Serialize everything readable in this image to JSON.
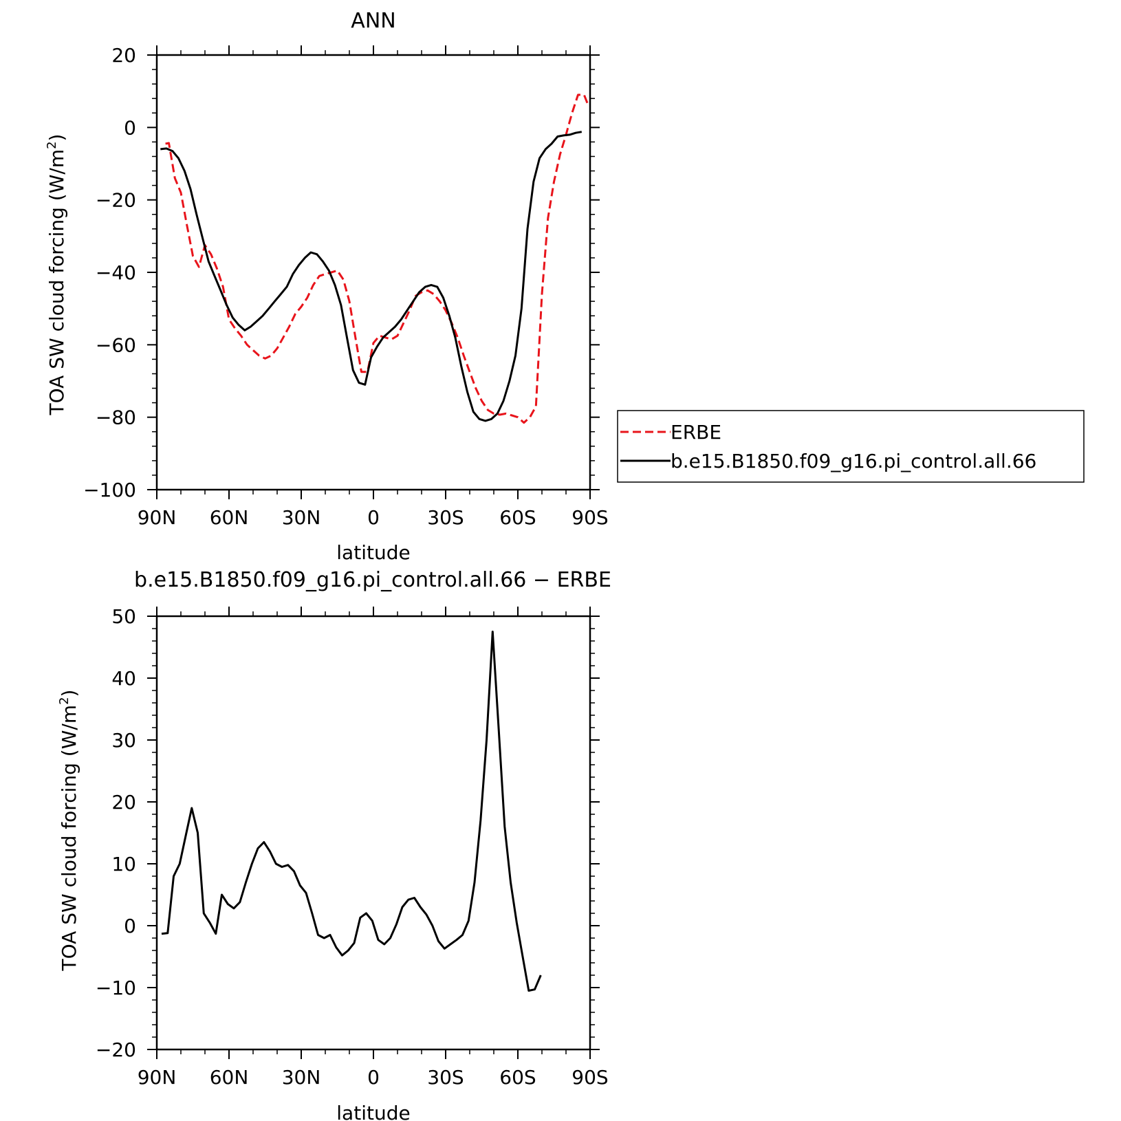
{
  "chart_data": [
    {
      "type": "line",
      "title": "ANN",
      "xlabel": "latitude",
      "ylabel_main": "TOA SW cloud forcing (W/m",
      "ylabel_sup": "2",
      "ylabel_close": ")",
      "xlim": [
        -90,
        90
      ],
      "ylim": [
        -100,
        20
      ],
      "x_ticks": [
        {
          "value": -90,
          "label": "90N"
        },
        {
          "value": -60,
          "label": "60N"
        },
        {
          "value": -30,
          "label": "30N"
        },
        {
          "value": 0,
          "label": "0"
        },
        {
          "value": 30,
          "label": "30S"
        },
        {
          "value": 60,
          "label": "60S"
        },
        {
          "value": 90,
          "label": "90S"
        }
      ],
      "y_ticks": [
        {
          "value": 20,
          "label": "20"
        },
        {
          "value": 0,
          "label": "0"
        },
        {
          "value": -20,
          "label": "−20"
        },
        {
          "value": -40,
          "label": "−40"
        },
        {
          "value": -60,
          "label": "−60"
        },
        {
          "value": -80,
          "label": "−80"
        },
        {
          "value": -100,
          "label": "−100"
        }
      ],
      "legend_position": "right",
      "series": [
        {
          "name": "ERBE",
          "color": "#e8141b",
          "style": "dashed",
          "points": [
            [
              -86.4,
              -4.5
            ],
            [
              -85.0,
              -4.3
            ],
            [
              -82.5,
              -14.0
            ],
            [
              -80.0,
              -18.0
            ],
            [
              -77.5,
              -27.0
            ],
            [
              -75.0,
              -35.5
            ],
            [
              -72.5,
              -38.5
            ],
            [
              -70.0,
              -32.5
            ],
            [
              -67.5,
              -35.0
            ],
            [
              -65.0,
              -39.0
            ],
            [
              -62.5,
              -44.0
            ],
            [
              -60.0,
              -53.0
            ],
            [
              -57.5,
              -55.5
            ],
            [
              -55.0,
              -57.5
            ],
            [
              -52.5,
              -60.0
            ],
            [
              -50.0,
              -61.5
            ],
            [
              -47.5,
              -63.0
            ],
            [
              -45.0,
              -63.8
            ],
            [
              -42.5,
              -63.0
            ],
            [
              -40.0,
              -61.0
            ],
            [
              -37.5,
              -58.0
            ],
            [
              -35.0,
              -55.0
            ],
            [
              -32.5,
              -51.5
            ],
            [
              -30.0,
              -49.5
            ],
            [
              -27.5,
              -47.0
            ],
            [
              -25.0,
              -43.5
            ],
            [
              -22.5,
              -41.0
            ],
            [
              -20.0,
              -40.5
            ],
            [
              -17.5,
              -40.0
            ],
            [
              -15.0,
              -39.5
            ],
            [
              -12.5,
              -42.0
            ],
            [
              -10.0,
              -48.0
            ],
            [
              -7.5,
              -58.0
            ],
            [
              -5.0,
              -67.5
            ],
            [
              -2.5,
              -67.5
            ],
            [
              0.0,
              -59.5
            ],
            [
              2.5,
              -57.5
            ],
            [
              5.0,
              -58.0
            ],
            [
              7.5,
              -58.5
            ],
            [
              10.0,
              -57.5
            ],
            [
              12.5,
              -54.0
            ],
            [
              15.0,
              -50.5
            ],
            [
              17.5,
              -46.5
            ],
            [
              20.0,
              -45.5
            ],
            [
              22.5,
              -45.0
            ],
            [
              25.0,
              -46.0
            ],
            [
              27.5,
              -48.0
            ],
            [
              30.0,
              -50.5
            ],
            [
              32.5,
              -54.0
            ],
            [
              35.0,
              -58.0
            ],
            [
              37.5,
              -63.0
            ],
            [
              40.0,
              -67.5
            ],
            [
              42.5,
              -72.0
            ],
            [
              45.0,
              -75.5
            ],
            [
              47.5,
              -78.0
            ],
            [
              50.0,
              -79.0
            ],
            [
              52.5,
              -79.3
            ],
            [
              55.0,
              -79.0
            ],
            [
              57.5,
              -79.5
            ],
            [
              60.0,
              -80.0
            ],
            [
              62.5,
              -81.5
            ],
            [
              65.0,
              -80.0
            ],
            [
              67.5,
              -77.0
            ],
            [
              70.0,
              -46.0
            ],
            [
              72.5,
              -25.0
            ],
            [
              75.0,
              -15.0
            ],
            [
              77.5,
              -7.5
            ],
            [
              80.0,
              -2.0
            ],
            [
              82.5,
              4.0
            ],
            [
              85.0,
              9.0
            ],
            [
              87.5,
              9.0
            ],
            [
              89.0,
              6.5
            ]
          ]
        },
        {
          "name": "b.e15.B1850.f09_g16.pi_control.all.66",
          "color": "#000000",
          "style": "solid",
          "points": [
            [
              -88.5,
              -6.0
            ],
            [
              -86.0,
              -5.8
            ],
            [
              -83.5,
              -6.5
            ],
            [
              -81.0,
              -8.5
            ],
            [
              -78.5,
              -12.0
            ],
            [
              -76.0,
              -17.0
            ],
            [
              -73.5,
              -24.0
            ],
            [
              -71.0,
              -30.5
            ],
            [
              -68.5,
              -37.0
            ],
            [
              -66.0,
              -41.0
            ],
            [
              -63.5,
              -45.0
            ],
            [
              -61.0,
              -49.0
            ],
            [
              -58.5,
              -52.5
            ],
            [
              -56.0,
              -54.5
            ],
            [
              -53.5,
              -56.0
            ],
            [
              -51.0,
              -55.0
            ],
            [
              -48.5,
              -53.5
            ],
            [
              -46.0,
              -52.0
            ],
            [
              -43.5,
              -50.0
            ],
            [
              -41.0,
              -48.0
            ],
            [
              -38.5,
              -46.0
            ],
            [
              -36.0,
              -44.0
            ],
            [
              -33.5,
              -40.5
            ],
            [
              -31.0,
              -38.0
            ],
            [
              -28.5,
              -36.0
            ],
            [
              -26.0,
              -34.5
            ],
            [
              -23.5,
              -35.0
            ],
            [
              -21.0,
              -37.0
            ],
            [
              -18.5,
              -39.5
            ],
            [
              -16.0,
              -43.5
            ],
            [
              -13.5,
              -49.0
            ],
            [
              -11.0,
              -58.0
            ],
            [
              -8.5,
              -67.0
            ],
            [
              -6.0,
              -70.5
            ],
            [
              -3.5,
              -71.0
            ],
            [
              -1.0,
              -63.5
            ],
            [
              1.5,
              -60.5
            ],
            [
              4.0,
              -58.0
            ],
            [
              6.5,
              -56.5
            ],
            [
              9.0,
              -55.0
            ],
            [
              11.5,
              -53.0
            ],
            [
              14.0,
              -50.5
            ],
            [
              16.5,
              -48.0
            ],
            [
              19.0,
              -45.5
            ],
            [
              21.5,
              -44.0
            ],
            [
              24.0,
              -43.5
            ],
            [
              26.5,
              -44.0
            ],
            [
              29.0,
              -47.0
            ],
            [
              31.5,
              -52.0
            ],
            [
              34.0,
              -58.0
            ],
            [
              36.5,
              -66.0
            ],
            [
              39.0,
              -73.0
            ],
            [
              41.5,
              -78.5
            ],
            [
              44.0,
              -80.5
            ],
            [
              46.5,
              -81.0
            ],
            [
              49.0,
              -80.5
            ],
            [
              51.5,
              -79.0
            ],
            [
              54.0,
              -75.5
            ],
            [
              56.5,
              -70.0
            ],
            [
              59.0,
              -63.0
            ],
            [
              61.5,
              -50.0
            ],
            [
              64.0,
              -28.0
            ],
            [
              66.5,
              -15.0
            ],
            [
              69.0,
              -8.5
            ],
            [
              71.5,
              -6.0
            ],
            [
              74.0,
              -4.5
            ],
            [
              76.5,
              -2.5
            ],
            [
              79.0,
              -2.2
            ],
            [
              81.5,
              -2.0
            ],
            [
              84.0,
              -1.5
            ],
            [
              86.5,
              -1.2
            ]
          ]
        }
      ]
    },
    {
      "type": "line",
      "title": "b.e15.B1850.f09_g16.pi_control.all.66 − ERBE",
      "xlabel": "latitude",
      "ylabel_main": "TOA SW cloud forcing (W/m",
      "ylabel_sup": "2",
      "ylabel_close": ")",
      "xlim": [
        -90,
        90
      ],
      "ylim": [
        -20,
        50
      ],
      "x_ticks": [
        {
          "value": -90,
          "label": "90N"
        },
        {
          "value": -60,
          "label": "60N"
        },
        {
          "value": -30,
          "label": "30N"
        },
        {
          "value": 0,
          "label": "0"
        },
        {
          "value": 30,
          "label": "30S"
        },
        {
          "value": 60,
          "label": "60S"
        },
        {
          "value": 90,
          "label": "90S"
        }
      ],
      "y_ticks": [
        {
          "value": 50,
          "label": "50"
        },
        {
          "value": 40,
          "label": "40"
        },
        {
          "value": 30,
          "label": "30"
        },
        {
          "value": 20,
          "label": "20"
        },
        {
          "value": 10,
          "label": "10"
        },
        {
          "value": 0,
          "label": "0"
        },
        {
          "value": -10,
          "label": "−10"
        },
        {
          "value": -20,
          "label": "−20"
        }
      ],
      "series": [
        {
          "color": "#000000",
          "style": "solid",
          "points": [
            [
              -88.0,
              -1.3
            ],
            [
              -85.5,
              -1.2
            ],
            [
              -83.0,
              8.0
            ],
            [
              -80.5,
              10.0
            ],
            [
              -78.0,
              14.5
            ],
            [
              -75.5,
              19.0
            ],
            [
              -73.0,
              15.0
            ],
            [
              -70.5,
              2.0
            ],
            [
              -68.0,
              0.5
            ],
            [
              -65.5,
              -1.3
            ],
            [
              -63.0,
              5.0
            ],
            [
              -60.5,
              3.5
            ],
            [
              -58.0,
              2.8
            ],
            [
              -55.5,
              3.8
            ],
            [
              -53.0,
              7.0
            ],
            [
              -50.5,
              10.0
            ],
            [
              -48.0,
              12.5
            ],
            [
              -45.5,
              13.5
            ],
            [
              -43.0,
              12.0
            ],
            [
              -40.5,
              10.0
            ],
            [
              -38.0,
              9.5
            ],
            [
              -35.5,
              9.8
            ],
            [
              -33.0,
              8.8
            ],
            [
              -30.5,
              6.5
            ],
            [
              -28.0,
              5.3
            ],
            [
              -25.5,
              2.0
            ],
            [
              -23.0,
              -1.5
            ],
            [
              -20.5,
              -2.0
            ],
            [
              -18.0,
              -1.5
            ],
            [
              -15.5,
              -3.5
            ],
            [
              -13.0,
              -4.8
            ],
            [
              -10.5,
              -4.0
            ],
            [
              -8.0,
              -2.8
            ],
            [
              -5.5,
              1.3
            ],
            [
              -3.0,
              2.0
            ],
            [
              -0.5,
              0.8
            ],
            [
              2.0,
              -2.3
            ],
            [
              4.5,
              -3.0
            ],
            [
              7.0,
              -2.0
            ],
            [
              9.5,
              0.2
            ],
            [
              12.0,
              3.0
            ],
            [
              14.5,
              4.2
            ],
            [
              17.0,
              4.5
            ],
            [
              19.5,
              3.0
            ],
            [
              22.0,
              1.8
            ],
            [
              24.5,
              0.0
            ],
            [
              27.0,
              -2.5
            ],
            [
              29.5,
              -3.7
            ],
            [
              32.0,
              -3.0
            ],
            [
              34.5,
              -2.3
            ],
            [
              37.0,
              -1.5
            ],
            [
              39.5,
              0.8
            ],
            [
              42.0,
              7.0
            ],
            [
              44.5,
              17.0
            ],
            [
              47.0,
              30.0
            ],
            [
              49.5,
              47.5
            ],
            [
              52.0,
              32.0
            ],
            [
              54.5,
              16.0
            ],
            [
              57.0,
              7.0
            ],
            [
              59.5,
              0.5
            ],
            [
              62.0,
              -5.0
            ],
            [
              64.5,
              -10.5
            ],
            [
              67.0,
              -10.3
            ],
            [
              69.5,
              -8.0
            ]
          ]
        }
      ]
    }
  ]
}
